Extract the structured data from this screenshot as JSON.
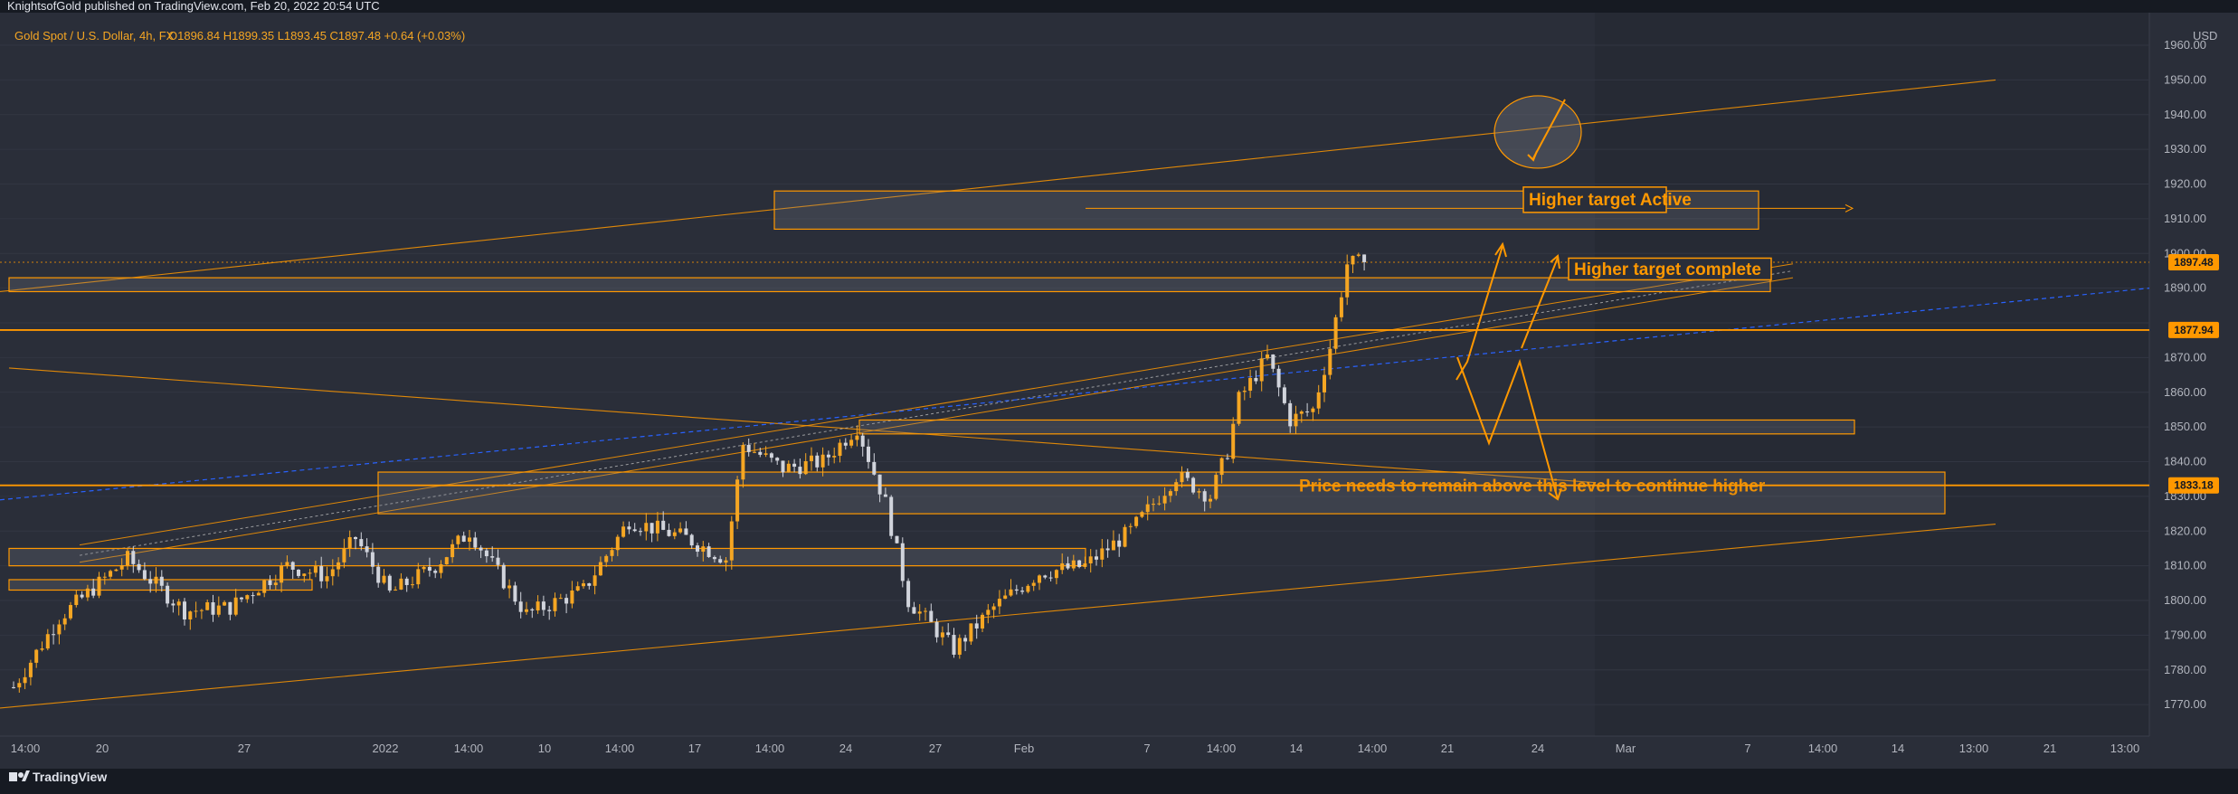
{
  "header": {
    "publisher_line": "KnightsofGold published on TradingView.com, Feb 20, 2022 20:54 UTC",
    "symbol": "Gold Spot / U.S. Dollar, 4h, FX",
    "ohlc": "O1896.84  H1899.35  L1893.45  C1897.48  +0.64 (+0.03%)"
  },
  "footer": {
    "brand": "TradingView"
  },
  "colors": {
    "background": "#2a2e39",
    "up": "#f5a623",
    "down": "#d1d4dc",
    "accent": "#ff9800",
    "blue_line": "#2962ff"
  },
  "chart_data": {
    "type": "candlestick",
    "symbol": "XAUUSD",
    "timeframe": "4h",
    "ylabel": "USD",
    "ylim": [
      1763,
      1966
    ],
    "y_ticks": [
      1770,
      1780,
      1790,
      1800,
      1810,
      1820,
      1830,
      1840,
      1850,
      1860,
      1870,
      1880,
      1890,
      1900,
      1910,
      1920,
      1930,
      1940,
      1950,
      1960
    ],
    "x_ticks": [
      "14:00",
      "20",
      "27",
      "2022",
      "14:00",
      "10",
      "14:00",
      "17",
      "14:00",
      "24",
      "27",
      "Feb",
      "7",
      "14:00",
      "14",
      "14:00",
      "21",
      "24",
      "Mar",
      "7",
      "14:00",
      "14",
      "13:00",
      "21",
      "13:00"
    ],
    "bar_count": 300,
    "last_bar_index": 237,
    "price_path": [
      [
        0,
        1775
      ],
      [
        8,
        1795
      ],
      [
        20,
        1812
      ],
      [
        30,
        1797
      ],
      [
        38,
        1798
      ],
      [
        48,
        1810
      ],
      [
        55,
        1807
      ],
      [
        60,
        1818
      ],
      [
        66,
        1802
      ],
      [
        74,
        1810
      ],
      [
        80,
        1820
      ],
      [
        85,
        1808
      ],
      [
        90,
        1796
      ],
      [
        100,
        1803
      ],
      [
        108,
        1823
      ],
      [
        118,
        1818
      ],
      [
        125,
        1812
      ],
      [
        128,
        1845
      ],
      [
        135,
        1838
      ],
      [
        142,
        1840
      ],
      [
        148,
        1850
      ],
      [
        153,
        1828
      ],
      [
        157,
        1800
      ],
      [
        165,
        1786
      ],
      [
        172,
        1798
      ],
      [
        180,
        1808
      ],
      [
        188,
        1810
      ],
      [
        196,
        1820
      ],
      [
        204,
        1836
      ],
      [
        210,
        1830
      ],
      [
        213,
        1843
      ],
      [
        215,
        1858
      ],
      [
        220,
        1870
      ],
      [
        224,
        1852
      ],
      [
        228,
        1855
      ],
      [
        231,
        1873
      ],
      [
        234,
        1897
      ],
      [
        237,
        1897.48
      ]
    ],
    "price_labels": [
      {
        "value": 1897.48,
        "text": "1897.48"
      },
      {
        "value": 1877.94,
        "text": "1877.94"
      },
      {
        "value": 1833.18,
        "text": "1833.18"
      }
    ],
    "annotations": [
      {
        "text": "Higher target Active",
        "anchor_price": 1916
      },
      {
        "text": "Higher target complete",
        "anchor_price": 1895
      },
      {
        "text": "Price needs to remain above this level to continue higher",
        "anchor_price": 1833
      }
    ]
  }
}
